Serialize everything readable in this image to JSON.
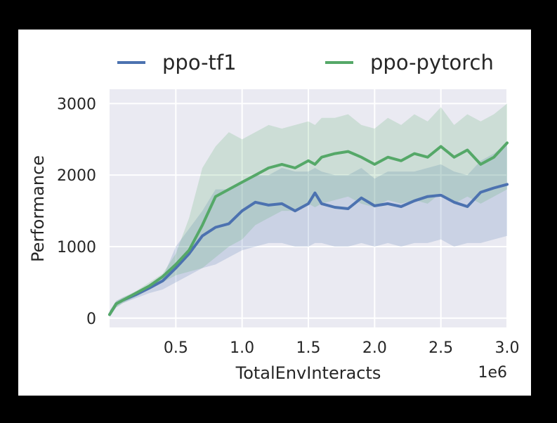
{
  "chart_data": {
    "type": "line",
    "xlabel": "TotalEnvInteracts",
    "ylabel": "Performance",
    "x_offset_label": "1e6",
    "xlim": [
      0,
      3.0
    ],
    "ylim": [
      -130,
      3200
    ],
    "x_ticks": [
      0.5,
      1.0,
      1.5,
      2.0,
      2.5,
      3.0
    ],
    "x_tick_labels": [
      "0.5",
      "1.0",
      "1.5",
      "2.0",
      "2.5",
      "3.0"
    ],
    "y_ticks": [
      0,
      1000,
      2000,
      3000
    ],
    "y_tick_labels": [
      "0",
      "1000",
      "2000",
      "3000"
    ],
    "grid": true,
    "legend_position": "top",
    "x": [
      0,
      0.05,
      0.1,
      0.2,
      0.3,
      0.4,
      0.5,
      0.6,
      0.7,
      0.8,
      0.9,
      1.0,
      1.1,
      1.2,
      1.3,
      1.4,
      1.5,
      1.55,
      1.6,
      1.7,
      1.8,
      1.9,
      2.0,
      2.1,
      2.2,
      2.3,
      2.4,
      2.5,
      2.6,
      2.7,
      2.8,
      2.9,
      3.0
    ],
    "series": [
      {
        "name": "ppo-tf1",
        "color": "#4c72b0",
        "values": [
          50,
          200,
          250,
          330,
          420,
          520,
          700,
          900,
          1150,
          1270,
          1320,
          1500,
          1620,
          1580,
          1600,
          1500,
          1600,
          1750,
          1600,
          1550,
          1530,
          1680,
          1570,
          1600,
          1560,
          1640,
          1700,
          1720,
          1620,
          1560,
          1760,
          1820,
          1870
        ],
        "band_upper": [
          100,
          240,
          290,
          360,
          470,
          560,
          1000,
          1250,
          1500,
          1800,
          1800,
          1900,
          2000,
          2000,
          2100,
          2050,
          2050,
          2100,
          2050,
          2000,
          2000,
          2100,
          1950,
          2050,
          2050,
          2050,
          2100,
          2150,
          2050,
          2000,
          2200,
          2300,
          2450
        ],
        "band_lower": [
          20,
          150,
          210,
          280,
          350,
          400,
          500,
          600,
          700,
          750,
          850,
          950,
          1000,
          1050,
          1050,
          1000,
          1000,
          1050,
          1050,
          1000,
          1000,
          1050,
          1000,
          1050,
          1000,
          1050,
          1050,
          1100,
          1000,
          1050,
          1050,
          1100,
          1150
        ]
      },
      {
        "name": "ppo-pytorch",
        "color": "#55a868",
        "values": [
          50,
          200,
          250,
          350,
          450,
          580,
          750,
          950,
          1300,
          1700,
          1800,
          1900,
          2000,
          2100,
          2150,
          2100,
          2200,
          2150,
          2250,
          2300,
          2330,
          2250,
          2150,
          2250,
          2200,
          2300,
          2250,
          2400,
          2250,
          2350,
          2150,
          2250,
          2450
        ],
        "band_upper": [
          100,
          240,
          290,
          380,
          500,
          620,
          900,
          1400,
          2100,
          2400,
          2600,
          2500,
          2600,
          2700,
          2650,
          2700,
          2750,
          2700,
          2800,
          2800,
          2850,
          2700,
          2650,
          2800,
          2700,
          2850,
          2750,
          2950,
          2700,
          2850,
          2750,
          2850,
          3000
        ],
        "band_lower": [
          20,
          150,
          210,
          300,
          400,
          500,
          600,
          650,
          700,
          850,
          1000,
          1100,
          1300,
          1400,
          1500,
          1500,
          1600,
          1550,
          1600,
          1650,
          1700,
          1600,
          1550,
          1650,
          1600,
          1650,
          1600,
          1750,
          1600,
          1700,
          1600,
          1700,
          1800
        ]
      }
    ]
  }
}
